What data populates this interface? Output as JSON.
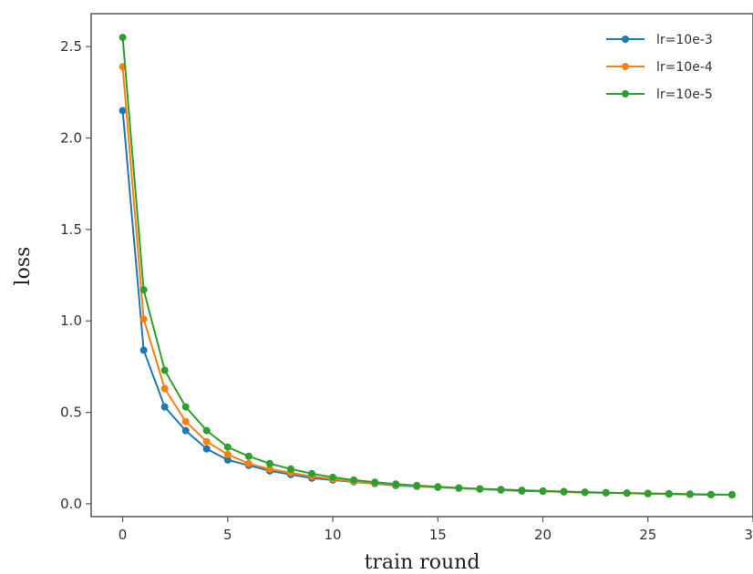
{
  "chart_data": {
    "type": "line",
    "xlabel": "train round",
    "ylabel": "loss",
    "xlim": [
      -1.5,
      30
    ],
    "ylim": [
      -0.07,
      2.68
    ],
    "x_ticks": [
      0,
      5,
      10,
      15,
      20,
      25,
      30
    ],
    "y_ticks": [
      0.0,
      0.5,
      1.0,
      1.5,
      2.0,
      2.5
    ],
    "x_tick_labels": [
      "0",
      "5",
      "10",
      "15",
      "20",
      "25",
      "30"
    ],
    "y_tick_labels": [
      "0.0",
      "0.5",
      "1.0",
      "1.5",
      "2.0",
      "2.5"
    ],
    "grid": false,
    "legend_position": "top-right",
    "x": [
      0,
      1,
      2,
      3,
      4,
      5,
      6,
      7,
      8,
      9,
      10,
      11,
      12,
      13,
      14,
      15,
      16,
      17,
      18,
      19,
      20,
      21,
      22,
      23,
      24,
      25,
      26,
      27,
      28,
      29
    ],
    "series": [
      {
        "name": "lr=10e-3",
        "color": "#1f77b4",
        "values": [
          2.15,
          0.84,
          0.53,
          0.4,
          0.3,
          0.24,
          0.21,
          0.18,
          0.16,
          0.14,
          0.13,
          0.12,
          0.11,
          0.1,
          0.095,
          0.09,
          0.085,
          0.08,
          0.075,
          0.07,
          0.068,
          0.065,
          0.062,
          0.06,
          0.058,
          0.055,
          0.053,
          0.051,
          0.05,
          0.049
        ]
      },
      {
        "name": "lr=10e-4",
        "color": "#ff7f0e",
        "values": [
          2.39,
          1.01,
          0.63,
          0.45,
          0.34,
          0.27,
          0.22,
          0.19,
          0.17,
          0.15,
          0.135,
          0.122,
          0.112,
          0.104,
          0.097,
          0.091,
          0.086,
          0.081,
          0.077,
          0.073,
          0.069,
          0.066,
          0.063,
          0.061,
          0.058,
          0.056,
          0.054,
          0.052,
          0.05,
          0.049
        ]
      },
      {
        "name": "lr=10e-5",
        "color": "#2ca02c",
        "values": [
          2.55,
          1.17,
          0.73,
          0.53,
          0.4,
          0.31,
          0.26,
          0.22,
          0.19,
          0.165,
          0.145,
          0.13,
          0.118,
          0.108,
          0.1,
          0.093,
          0.087,
          0.082,
          0.078,
          0.074,
          0.07,
          0.067,
          0.064,
          0.061,
          0.059,
          0.057,
          0.055,
          0.053,
          0.051,
          0.05
        ]
      }
    ]
  }
}
